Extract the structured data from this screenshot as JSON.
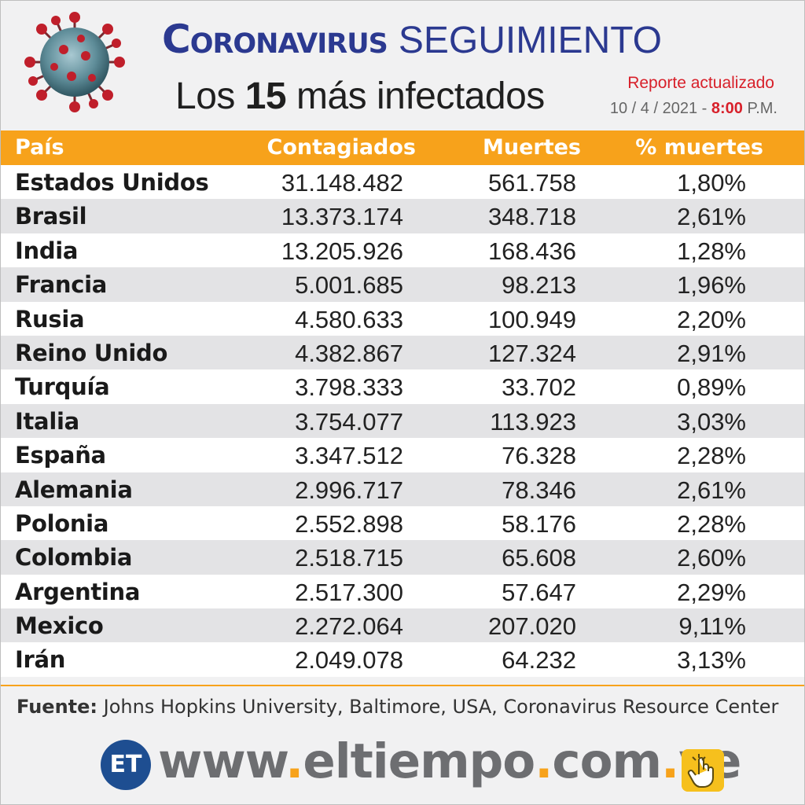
{
  "header": {
    "title_main": "Coronavirus",
    "title_sub": "SEGUIMIENTO",
    "subtitle_prefix": "Los",
    "subtitle_number": "15",
    "subtitle_suffix": "más infectados",
    "report_label": "Reporte actualizado",
    "report_date": "10 / 4 / 2021 -",
    "report_time": "8:00",
    "report_period": "P.M."
  },
  "chart_data": {
    "type": "table",
    "columns": [
      "País",
      "Contagiados",
      "Muertes",
      "% muertes"
    ],
    "rows": [
      [
        "Estados Unidos",
        "31.148.482",
        "561.758",
        "1,80%"
      ],
      [
        "Brasil",
        "13.373.174",
        "348.718",
        "2,61%"
      ],
      [
        "India",
        "13.205.926",
        "168.436",
        "1,28%"
      ],
      [
        "Francia",
        "5.001.685",
        "98.213",
        "1,96%"
      ],
      [
        "Rusia",
        "4.580.633",
        "100.949",
        "2,20%"
      ],
      [
        "Reino Unido",
        "4.382.867",
        "127.324",
        "2,91%"
      ],
      [
        "Turquía",
        "3.798.333",
        "33.702",
        "0,89%"
      ],
      [
        "Italia",
        "3.754.077",
        "113.923",
        "3,03%"
      ],
      [
        "España",
        "3.347.512",
        "76.328",
        "2,28%"
      ],
      [
        "Alemania",
        "2.996.717",
        "78.346",
        "2,61%"
      ],
      [
        "Polonia",
        "2.552.898",
        "58.176",
        "2,28%"
      ],
      [
        "Colombia",
        "2.518.715",
        "65.608",
        "2,60%"
      ],
      [
        "Argentina",
        "2.517.300",
        "57.647",
        "2,29%"
      ],
      [
        "Mexico",
        "2.272.064",
        "207.020",
        "9,11%"
      ],
      [
        "Irán",
        "2.049.078",
        "64.232",
        "3,13%"
      ]
    ]
  },
  "footer": {
    "source_label": "Fuente:",
    "source_text": "Johns Hopkins University, Baltimore, USA, Coronavirus Resource Center",
    "logo_text": "ET",
    "url_parts": [
      "www",
      ".",
      "eltiempo",
      ".",
      "com",
      ".",
      "ve"
    ]
  },
  "colors": {
    "title_blue": "#2b3990",
    "header_orange": "#f7a21b",
    "report_red": "#d8202a",
    "logo_blue": "#1e4e91"
  },
  "icons": [
    "virus-icon",
    "et-logo-icon",
    "hand-click-icon"
  ]
}
